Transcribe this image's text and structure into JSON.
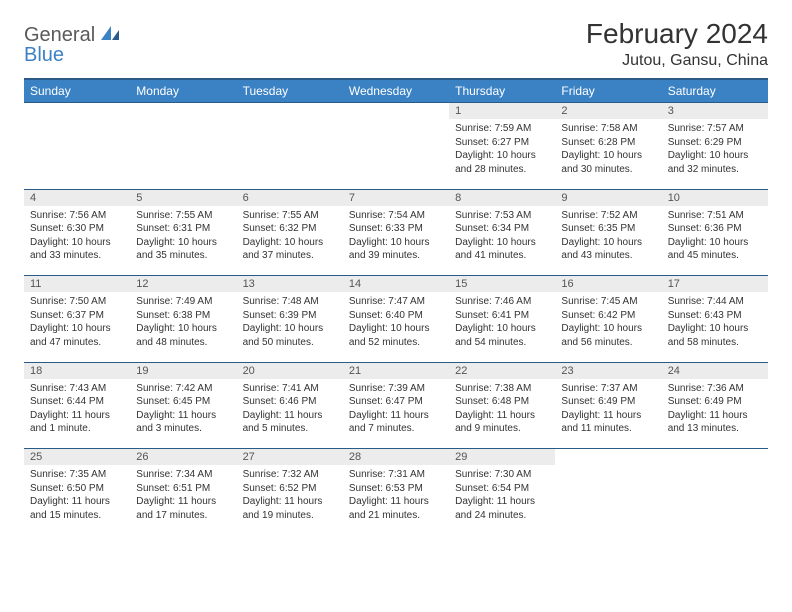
{
  "logo": {
    "part1": "General",
    "part2": "Blue"
  },
  "title": "February 2024",
  "location": "Jutou, Gansu, China",
  "header_bg": "#3b82c4",
  "header_fg": "#ffffff",
  "rule_color": "#2a5a88",
  "daynum_bg": "#ececec",
  "text_color": "#333333",
  "weekdays": [
    "Sunday",
    "Monday",
    "Tuesday",
    "Wednesday",
    "Thursday",
    "Friday",
    "Saturday"
  ],
  "weeks": [
    [
      null,
      null,
      null,
      null,
      {
        "n": "1",
        "sr": "7:59 AM",
        "ss": "6:27 PM",
        "dl": "10 hours and 28 minutes."
      },
      {
        "n": "2",
        "sr": "7:58 AM",
        "ss": "6:28 PM",
        "dl": "10 hours and 30 minutes."
      },
      {
        "n": "3",
        "sr": "7:57 AM",
        "ss": "6:29 PM",
        "dl": "10 hours and 32 minutes."
      }
    ],
    [
      {
        "n": "4",
        "sr": "7:56 AM",
        "ss": "6:30 PM",
        "dl": "10 hours and 33 minutes."
      },
      {
        "n": "5",
        "sr": "7:55 AM",
        "ss": "6:31 PM",
        "dl": "10 hours and 35 minutes."
      },
      {
        "n": "6",
        "sr": "7:55 AM",
        "ss": "6:32 PM",
        "dl": "10 hours and 37 minutes."
      },
      {
        "n": "7",
        "sr": "7:54 AM",
        "ss": "6:33 PM",
        "dl": "10 hours and 39 minutes."
      },
      {
        "n": "8",
        "sr": "7:53 AM",
        "ss": "6:34 PM",
        "dl": "10 hours and 41 minutes."
      },
      {
        "n": "9",
        "sr": "7:52 AM",
        "ss": "6:35 PM",
        "dl": "10 hours and 43 minutes."
      },
      {
        "n": "10",
        "sr": "7:51 AM",
        "ss": "6:36 PM",
        "dl": "10 hours and 45 minutes."
      }
    ],
    [
      {
        "n": "11",
        "sr": "7:50 AM",
        "ss": "6:37 PM",
        "dl": "10 hours and 47 minutes."
      },
      {
        "n": "12",
        "sr": "7:49 AM",
        "ss": "6:38 PM",
        "dl": "10 hours and 48 minutes."
      },
      {
        "n": "13",
        "sr": "7:48 AM",
        "ss": "6:39 PM",
        "dl": "10 hours and 50 minutes."
      },
      {
        "n": "14",
        "sr": "7:47 AM",
        "ss": "6:40 PM",
        "dl": "10 hours and 52 minutes."
      },
      {
        "n": "15",
        "sr": "7:46 AM",
        "ss": "6:41 PM",
        "dl": "10 hours and 54 minutes."
      },
      {
        "n": "16",
        "sr": "7:45 AM",
        "ss": "6:42 PM",
        "dl": "10 hours and 56 minutes."
      },
      {
        "n": "17",
        "sr": "7:44 AM",
        "ss": "6:43 PM",
        "dl": "10 hours and 58 minutes."
      }
    ],
    [
      {
        "n": "18",
        "sr": "7:43 AM",
        "ss": "6:44 PM",
        "dl": "11 hours and 1 minute."
      },
      {
        "n": "19",
        "sr": "7:42 AM",
        "ss": "6:45 PM",
        "dl": "11 hours and 3 minutes."
      },
      {
        "n": "20",
        "sr": "7:41 AM",
        "ss": "6:46 PM",
        "dl": "11 hours and 5 minutes."
      },
      {
        "n": "21",
        "sr": "7:39 AM",
        "ss": "6:47 PM",
        "dl": "11 hours and 7 minutes."
      },
      {
        "n": "22",
        "sr": "7:38 AM",
        "ss": "6:48 PM",
        "dl": "11 hours and 9 minutes."
      },
      {
        "n": "23",
        "sr": "7:37 AM",
        "ss": "6:49 PM",
        "dl": "11 hours and 11 minutes."
      },
      {
        "n": "24",
        "sr": "7:36 AM",
        "ss": "6:49 PM",
        "dl": "11 hours and 13 minutes."
      }
    ],
    [
      {
        "n": "25",
        "sr": "7:35 AM",
        "ss": "6:50 PM",
        "dl": "11 hours and 15 minutes."
      },
      {
        "n": "26",
        "sr": "7:34 AM",
        "ss": "6:51 PM",
        "dl": "11 hours and 17 minutes."
      },
      {
        "n": "27",
        "sr": "7:32 AM",
        "ss": "6:52 PM",
        "dl": "11 hours and 19 minutes."
      },
      {
        "n": "28",
        "sr": "7:31 AM",
        "ss": "6:53 PM",
        "dl": "11 hours and 21 minutes."
      },
      {
        "n": "29",
        "sr": "7:30 AM",
        "ss": "6:54 PM",
        "dl": "11 hours and 24 minutes."
      },
      null,
      null
    ]
  ],
  "labels": {
    "sunrise": "Sunrise:",
    "sunset": "Sunset:",
    "daylight": "Daylight:"
  }
}
